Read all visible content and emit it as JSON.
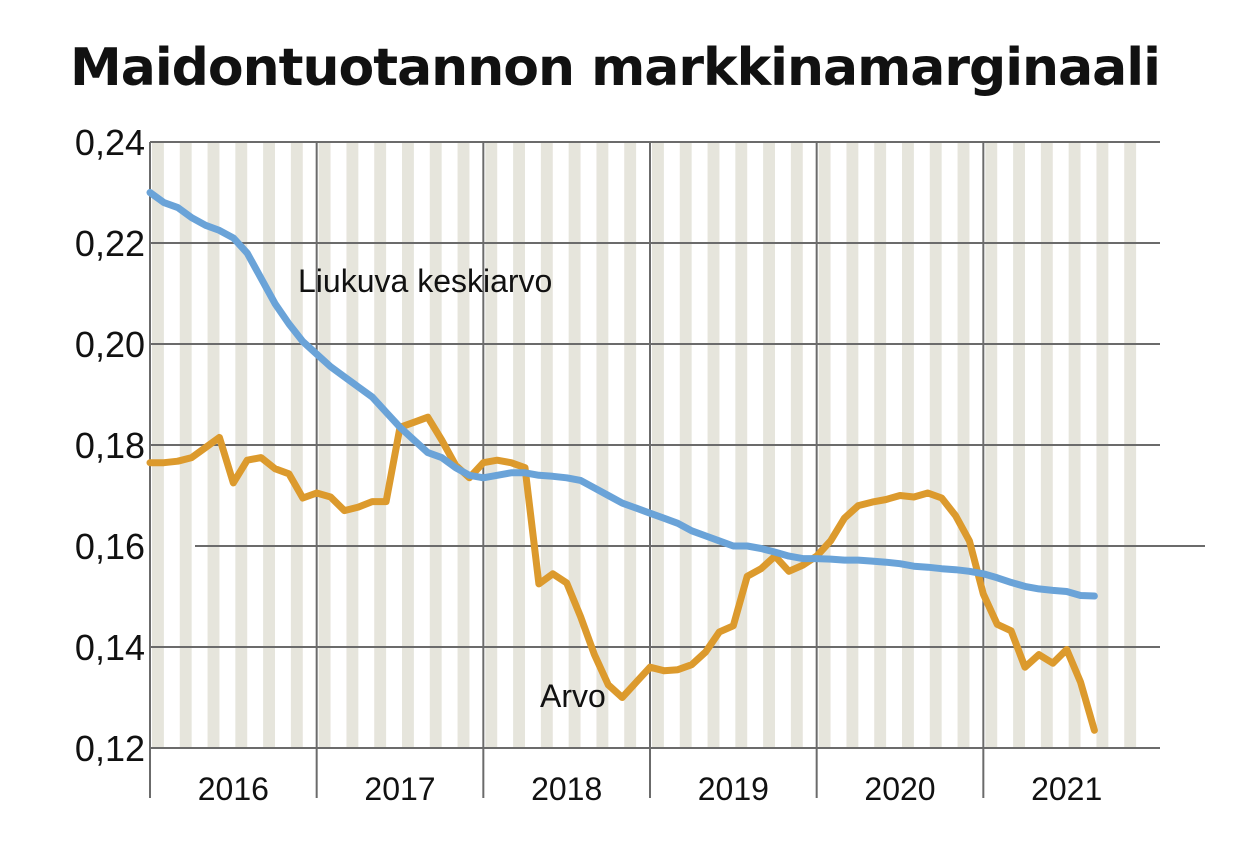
{
  "chart_data": {
    "type": "line",
    "title": "Maidontuotannon markkinamarginaali",
    "xlabel": "",
    "ylabel": "",
    "ylim": [
      0.12,
      0.24
    ],
    "y_ticks": [
      "0,12",
      "0,14",
      "0,16",
      "0,18",
      "0,20",
      "0,22",
      "0,24"
    ],
    "y_tick_values": [
      0.12,
      0.14,
      0.16,
      0.18,
      0.2,
      0.22,
      0.24
    ],
    "years": [
      "2016",
      "2017",
      "2018",
      "2019",
      "2020",
      "2021"
    ],
    "x_start": "2016-01",
    "x_end": "2022-01",
    "grid": true,
    "series": [
      {
        "name": "Liukuva keskiarvo",
        "color": "#6aa3d8",
        "x": [
          "2016-01",
          "2016-02",
          "2016-03",
          "2016-04",
          "2016-05",
          "2016-06",
          "2016-07",
          "2016-08",
          "2016-09",
          "2016-10",
          "2016-11",
          "2016-12",
          "2017-01",
          "2017-02",
          "2017-03",
          "2017-04",
          "2017-05",
          "2017-06",
          "2017-07",
          "2017-08",
          "2017-09",
          "2017-10",
          "2017-11",
          "2017-12",
          "2018-01",
          "2018-02",
          "2018-03",
          "2018-04",
          "2018-05",
          "2018-06",
          "2018-07",
          "2018-08",
          "2018-09",
          "2018-10",
          "2018-11",
          "2018-12",
          "2019-01",
          "2019-02",
          "2019-03",
          "2019-04",
          "2019-05",
          "2019-06",
          "2019-07",
          "2019-08",
          "2019-09",
          "2019-10",
          "2019-11",
          "2019-12",
          "2020-01",
          "2020-02",
          "2020-03",
          "2020-04",
          "2020-05",
          "2020-06",
          "2020-07",
          "2020-08",
          "2020-09",
          "2020-10",
          "2020-11",
          "2020-12",
          "2021-01",
          "2021-02",
          "2021-03",
          "2021-04",
          "2021-05",
          "2021-06",
          "2021-07",
          "2021-08",
          "2021-09"
        ],
        "values": [
          0.23,
          0.228,
          0.227,
          0.225,
          0.2235,
          0.2225,
          0.221,
          0.218,
          0.213,
          0.208,
          0.204,
          0.2005,
          0.198,
          0.1955,
          0.1935,
          0.1915,
          0.1895,
          0.1865,
          0.1835,
          0.181,
          0.1785,
          0.1775,
          0.1755,
          0.174,
          0.1735,
          0.174,
          0.1745,
          0.1745,
          0.174,
          0.1738,
          0.1735,
          0.173,
          0.1715,
          0.17,
          0.1685,
          0.1675,
          0.1665,
          0.1655,
          0.1645,
          0.163,
          0.162,
          0.161,
          0.16,
          0.16,
          0.1595,
          0.1588,
          0.158,
          0.1575,
          0.1575,
          0.1574,
          0.1572,
          0.1572,
          0.157,
          0.1568,
          0.1565,
          0.156,
          0.1558,
          0.1555,
          0.1553,
          0.155,
          0.1545,
          0.1537,
          0.1528,
          0.152,
          0.1515,
          0.1512,
          0.151,
          0.1502,
          0.1501
        ]
      },
      {
        "name": "Arvo",
        "color": "#dc9a2d",
        "x": [
          "2016-01",
          "2016-02",
          "2016-03",
          "2016-04",
          "2016-05",
          "2016-06",
          "2016-07",
          "2016-08",
          "2016-09",
          "2016-10",
          "2016-11",
          "2016-12",
          "2017-01",
          "2017-02",
          "2017-03",
          "2017-04",
          "2017-05",
          "2017-06",
          "2017-07",
          "2017-08",
          "2017-09",
          "2017-10",
          "2017-11",
          "2017-12",
          "2018-01",
          "2018-02",
          "2018-03",
          "2018-04",
          "2018-05",
          "2018-06",
          "2018-07",
          "2018-08",
          "2018-09",
          "2018-10",
          "2018-11",
          "2018-12",
          "2019-01",
          "2019-02",
          "2019-03",
          "2019-04",
          "2019-05",
          "2019-06",
          "2019-07",
          "2019-08",
          "2019-09",
          "2019-10",
          "2019-11",
          "2019-12",
          "2020-01",
          "2020-02",
          "2020-03",
          "2020-04",
          "2020-05",
          "2020-06",
          "2020-07",
          "2020-08",
          "2020-09",
          "2020-10",
          "2020-11",
          "2020-12",
          "2021-01",
          "2021-02",
          "2021-03",
          "2021-04",
          "2021-05",
          "2021-06",
          "2021-07",
          "2021-08",
          "2021-09"
        ],
        "values": [
          0.1765,
          0.1765,
          0.1768,
          0.1775,
          0.1795,
          0.1815,
          0.1725,
          0.177,
          0.1775,
          0.1753,
          0.1743,
          0.1695,
          0.1705,
          0.1697,
          0.167,
          0.1677,
          0.1688,
          0.1688,
          0.1835,
          0.1845,
          0.1855,
          0.181,
          0.176,
          0.1735,
          0.1765,
          0.177,
          0.1765,
          0.1755,
          0.1525,
          0.1545,
          0.1527,
          0.146,
          0.1385,
          0.1325,
          0.13,
          0.133,
          0.136,
          0.1353,
          0.1355,
          0.1365,
          0.139,
          0.143,
          0.1442,
          0.154,
          0.1555,
          0.158,
          0.155,
          0.1562,
          0.158,
          0.161,
          0.1655,
          0.168,
          0.1687,
          0.1692,
          0.17,
          0.1697,
          0.1705,
          0.1695,
          0.166,
          0.161,
          0.1505,
          0.1445,
          0.1432,
          0.136,
          0.1385,
          0.1368,
          0.1395,
          0.133,
          0.1235
        ]
      }
    ],
    "annotations": [
      {
        "text": "Liukuva keskiarvo",
        "series": "Liukuva keskiarvo"
      },
      {
        "text": "Arvo",
        "series": "Arvo"
      }
    ]
  }
}
